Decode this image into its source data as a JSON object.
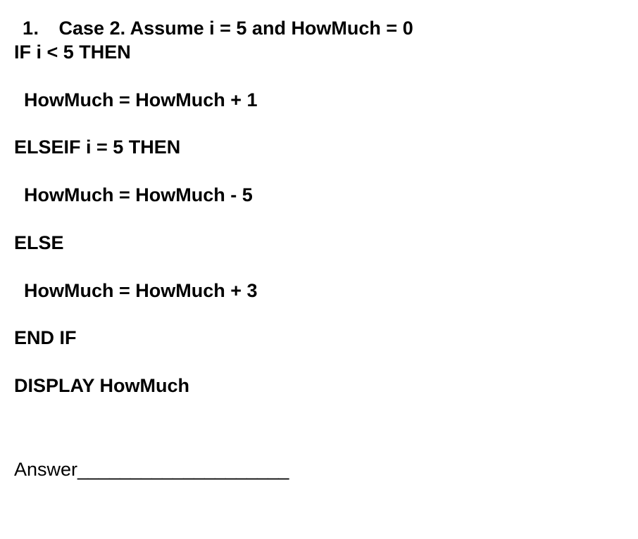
{
  "text_color": "#000000",
  "background_color": "#ffffff",
  "font_family": "Helvetica Neue, Helvetica, Arial, sans-serif",
  "font_size_pt": 20,
  "question_number": "1.",
  "lines": {
    "l1_case": "Case 2. Assume i = 5 and HowMuch = 0",
    "l2_if": "IF i < 5 THEN",
    "l3_plus1": "HowMuch = HowMuch + 1",
    "l4_elseif": "ELSEIF i = 5 THEN",
    "l5_minus5": "HowMuch = HowMuch - 5",
    "l6_else": "ELSE",
    "l7_plus3": "HowMuch = HowMuch + 3",
    "l8_endif": "END IF",
    "l9_display": "DISPLAY HowMuch"
  },
  "answer_label": "Answer____________________"
}
